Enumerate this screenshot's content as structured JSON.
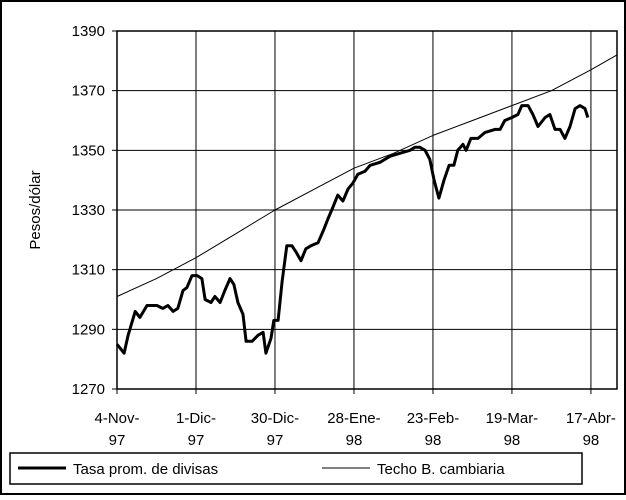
{
  "chart_data": {
    "type": "line",
    "y_label": "Pesos/dólar",
    "ylim": [
      1270,
      1390
    ],
    "yticks": [
      1270,
      1290,
      1310,
      1330,
      1350,
      1370,
      1390
    ],
    "xlim": [
      0,
      126.6
    ],
    "xticks": [
      {
        "value": 0,
        "label": [
          "4-Nov-",
          "97"
        ]
      },
      {
        "value": 20,
        "label": [
          "1-Dic-",
          "97"
        ]
      },
      {
        "value": 40,
        "label": [
          "30-Dic-",
          "97"
        ]
      },
      {
        "value": 60,
        "label": [
          "28-Ene-",
          "98"
        ]
      },
      {
        "value": 80,
        "label": [
          "23-Feb-",
          "98"
        ]
      },
      {
        "value": 100,
        "label": [
          "19-Mar-",
          "98"
        ]
      },
      {
        "value": 120,
        "label": [
          "17-Abr-",
          "98"
        ]
      }
    ],
    "grid": true,
    "series": [
      {
        "name": "Tasa prom. de divisas",
        "color": "#000000",
        "width": 3,
        "x": [
          0,
          1.8,
          2.8,
          4.6,
          5.8,
          7.6,
          10.1,
          11.6,
          12.9,
          14.2,
          15.4,
          16.7,
          17.7,
          19.0,
          20.3,
          21.5,
          22.3,
          23.8,
          24.8,
          26.1,
          27.3,
          28.6,
          29.6,
          30.6,
          31.9,
          32.7,
          34.2,
          35.7,
          37.0,
          37.7,
          39.0,
          39.7,
          40.8,
          41.8,
          43.0,
          44.3,
          45.3,
          46.6,
          47.8,
          49.1,
          50.9,
          52.2,
          53.4,
          54.7,
          55.9,
          57.2,
          58.5,
          59.7,
          61.0,
          62.8,
          64.1,
          66.6,
          69.1,
          71.6,
          74.2,
          75.4,
          76.7,
          78.0,
          79.2,
          80.3,
          81.5,
          82.8,
          84.1,
          85.3,
          86.3,
          87.6,
          88.4,
          89.6,
          91.4,
          93.2,
          95.7,
          97.0,
          98.2,
          100.0,
          101.5,
          102.5,
          104.1,
          105.3,
          106.6,
          108.4,
          109.6,
          110.9,
          112.2,
          113.4,
          114.7,
          116.0,
          117.2,
          118.5,
          119.2
        ],
        "values": [
          1285,
          1282,
          1288,
          1296,
          1294,
          1298,
          1298,
          1297,
          1298,
          1296,
          1297,
          1303,
          1304,
          1308,
          1308,
          1307,
          1300,
          1299,
          1301,
          1299,
          1303,
          1307,
          1305,
          1299,
          1295,
          1286,
          1286,
          1288,
          1289,
          1282,
          1287,
          1293,
          1293,
          1306,
          1318,
          1318,
          1316,
          1313,
          1317,
          1318,
          1319,
          1323,
          1327,
          1331,
          1335,
          1333,
          1337,
          1339,
          1342,
          1343,
          1345,
          1346,
          1348,
          1349,
          1350,
          1351,
          1351,
          1350,
          1347,
          1340,
          1334,
          1340,
          1345,
          1345,
          1350,
          1352,
          1350,
          1354,
          1354,
          1356,
          1357,
          1357,
          1360,
          1361,
          1362,
          1365,
          1365,
          1362,
          1358,
          1361,
          1362,
          1357,
          1357,
          1354,
          1358,
          1364,
          1365,
          1364,
          1361
        ]
      },
      {
        "name": "Techo B. cambiaria",
        "color": "#000000",
        "width": 1,
        "x": [
          0,
          10,
          20,
          30,
          40,
          50,
          60,
          70,
          80,
          90,
          100,
          110,
          120,
          126.6
        ],
        "values": [
          1301,
          1307,
          1314,
          1322,
          1330,
          1337,
          1344,
          1349,
          1355,
          1360,
          1365,
          1370,
          1377,
          1382
        ]
      }
    ],
    "legend": "bottom"
  }
}
